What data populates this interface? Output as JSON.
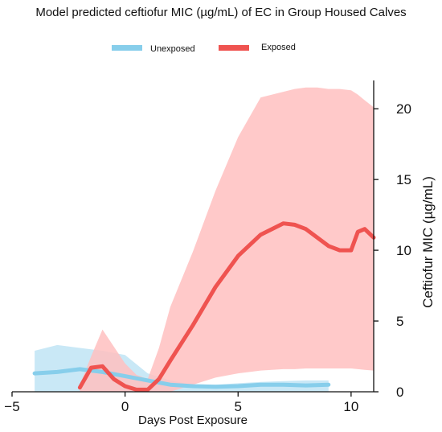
{
  "chart_data": {
    "type": "line",
    "title": "Model predicted ceftiofur MIC (µg/mL) of EC in Group Housed Calves",
    "xlabel": "Days Post Exposure",
    "ylabel": "Ceftiofur MIC (µg/mL)",
    "xlim": [
      -5,
      11
    ],
    "ylim": [
      0,
      22
    ],
    "x_ticks": [
      -5,
      0,
      5,
      10
    ],
    "y_ticks": [
      0,
      5,
      10,
      15,
      20
    ],
    "y_axis_position": "right",
    "grid": false,
    "legend_position": "top-center",
    "series": [
      {
        "name": "Unexposed",
        "color": "#87ceeb",
        "band_color": "#bfe4f4",
        "x": [
          -4,
          -3,
          -2,
          -1,
          0,
          1,
          2,
          3,
          4,
          5,
          6,
          7,
          8,
          9
        ],
        "y": [
          1.3,
          1.4,
          1.6,
          1.4,
          1.1,
          0.8,
          0.5,
          0.4,
          0.35,
          0.4,
          0.5,
          0.5,
          0.45,
          0.5
        ],
        "lower": [
          0,
          0,
          0,
          0,
          0,
          0,
          0,
          0,
          0,
          0,
          0,
          0,
          0,
          0
        ],
        "upper": [
          2.9,
          3.3,
          3.1,
          2.9,
          2.6,
          1.3,
          0.8,
          0.5,
          0.5,
          0.6,
          0.7,
          0.75,
          0.8,
          0.8
        ]
      },
      {
        "name": "Exposed",
        "color": "#ef5350",
        "band_color": "#ffbfbf",
        "x": [
          -2,
          -1.5,
          -1,
          -0.5,
          0,
          0.5,
          1,
          1.5,
          2,
          3,
          4,
          5,
          6,
          7,
          7.5,
          8,
          8.5,
          9,
          9.5,
          10,
          10.3,
          10.6,
          11
        ],
        "y": [
          0.3,
          1.7,
          1.8,
          0.9,
          0.4,
          0.15,
          0.15,
          0.9,
          2.2,
          4.7,
          7.4,
          9.6,
          11.1,
          11.9,
          11.8,
          11.5,
          10.9,
          10.3,
          10.0,
          10.0,
          11.3,
          11.5,
          10.9
        ],
        "lower": [
          0,
          0,
          0,
          0,
          0,
          0,
          0,
          0,
          0,
          0.5,
          1.0,
          1.3,
          1.5,
          1.6,
          1.6,
          1.65,
          1.65,
          1.65,
          1.65,
          1.65,
          1.6,
          1.55,
          1.5
        ],
        "upper": [
          0.5,
          2.5,
          4.4,
          3.2,
          2.0,
          1.2,
          0.9,
          3.1,
          6.0,
          9.9,
          14.2,
          18.0,
          20.8,
          21.2,
          21.4,
          21.5,
          21.5,
          21.4,
          21.4,
          21.3,
          21.0,
          20.6,
          20.1
        ]
      }
    ]
  }
}
